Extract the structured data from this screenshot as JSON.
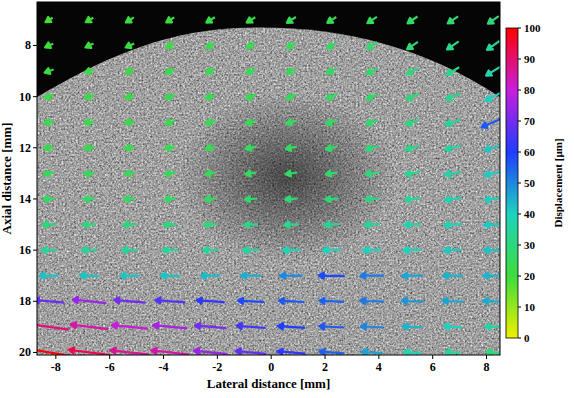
{
  "chart_data": {
    "type": "quiver",
    "x_label": "Lateral distance [mm]",
    "y_label": "Axial distance [mm]",
    "xlim": [
      -8.7,
      8.5
    ],
    "ylim": [
      6.3,
      20.1
    ],
    "xticks": [
      -8,
      -6,
      -4,
      -2,
      0,
      2,
      4,
      6,
      8
    ],
    "yticks": [
      8,
      10,
      12,
      14,
      16,
      18,
      20
    ],
    "x": [
      -8.25,
      -6.75,
      -5.25,
      -3.75,
      -2.25,
      -0.75,
      0.75,
      2.25,
      3.75,
      5.25,
      6.75,
      8.25
    ],
    "y": [
      7,
      8,
      9,
      10,
      11,
      12,
      13,
      14,
      15,
      16,
      17,
      18,
      19,
      20
    ],
    "u": [
      [
        -16,
        -17,
        -18,
        -18,
        -19,
        -19,
        -20,
        -20,
        -21,
        -22,
        -23,
        -24
      ],
      [
        -18,
        -18,
        -19,
        -19,
        -20,
        -20,
        -21,
        -22,
        -23,
        -24,
        -26,
        -28
      ],
      [
        -20,
        -20,
        -20,
        -21,
        -21,
        -22,
        -22,
        -23,
        -24,
        -26,
        -28,
        -32
      ],
      [
        -21,
        -21,
        -21,
        -22,
        -22,
        -22,
        -23,
        -24,
        -25,
        -27,
        -30,
        -36
      ],
      [
        -22,
        -22,
        -22,
        -22,
        -23,
        -23,
        -24,
        -25,
        -27,
        -29,
        -33,
        -52
      ],
      [
        -23,
        -23,
        -23,
        -23,
        -23,
        -24,
        -25,
        -26,
        -28,
        -31,
        -35,
        -40
      ],
      [
        -24,
        -24,
        -24,
        -24,
        -24,
        -25,
        -26,
        -27,
        -29,
        -32,
        -36,
        -40
      ],
      [
        -26,
        -26,
        -26,
        -26,
        -26,
        -27,
        -28,
        -29,
        -31,
        -34,
        -37,
        -40
      ],
      [
        -30,
        -30,
        -30,
        -30,
        -30,
        -31,
        -32,
        -33,
        -35,
        -37,
        -39,
        -41
      ],
      [
        -34,
        -34,
        -35,
        -35,
        -35,
        -36,
        -38,
        -40,
        -40,
        -40,
        -41,
        -42
      ],
      [
        -42,
        -42,
        -42,
        -42,
        -43,
        -45,
        -50,
        -58,
        -52,
        -46,
        -44,
        -44
      ],
      [
        -68,
        -74,
        -70,
        -66,
        -62,
        -58,
        -56,
        -55,
        -52,
        -48,
        -46,
        -45
      ],
      [
        -88,
        -84,
        -80,
        -76,
        -70,
        -64,
        -60,
        -56,
        -50,
        -44,
        -40,
        -36
      ],
      [
        -98,
        -92,
        -86,
        -84,
        -74,
        -68,
        -62,
        -55,
        -46,
        -38,
        -34,
        -30
      ]
    ],
    "v": [
      [
        10,
        10,
        11,
        11,
        12,
        12,
        13,
        13,
        14,
        15,
        16,
        17
      ],
      [
        8,
        9,
        9,
        10,
        11,
        11,
        12,
        13,
        14,
        16,
        18,
        20
      ],
      [
        7,
        7,
        8,
        8,
        9,
        9,
        10,
        11,
        12,
        14,
        17,
        20
      ],
      [
        6,
        6,
        6,
        7,
        7,
        8,
        8,
        9,
        10,
        12,
        14,
        18
      ],
      [
        5,
        5,
        5,
        6,
        6,
        6,
        7,
        8,
        9,
        10,
        12,
        22
      ],
      [
        4,
        4,
        4,
        4,
        5,
        5,
        5,
        6,
        7,
        8,
        9,
        11
      ],
      [
        3,
        3,
        3,
        3,
        3,
        4,
        4,
        4,
        5,
        6,
        7,
        8
      ],
      [
        2,
        2,
        2,
        2,
        2,
        2,
        3,
        3,
        3,
        4,
        5,
        5
      ],
      [
        1,
        1,
        1,
        1,
        1,
        1,
        2,
        2,
        2,
        2,
        3,
        3
      ],
      [
        0,
        0,
        0,
        0,
        0,
        1,
        1,
        1,
        1,
        1,
        1,
        1
      ],
      [
        -1,
        -1,
        -1,
        -1,
        0,
        0,
        0,
        -1,
        0,
        0,
        0,
        0
      ],
      [
        -6,
        -8,
        -6,
        -5,
        -4,
        -3,
        -3,
        -3,
        -2,
        -2,
        -2,
        -2
      ],
      [
        -12,
        -10,
        -8,
        -7,
        -6,
        -5,
        -4,
        -3,
        -3,
        -2,
        -2,
        -2
      ],
      [
        -16,
        -12,
        -10,
        -9,
        -8,
        -6,
        -5,
        -4,
        -3,
        -2,
        -2,
        -2
      ]
    ],
    "colorbar": {
      "label": "Displacement [µm]",
      "range": [
        0,
        100
      ],
      "ticks": [
        0,
        10,
        20,
        30,
        40,
        50,
        60,
        70,
        80,
        90,
        100
      ]
    }
  }
}
